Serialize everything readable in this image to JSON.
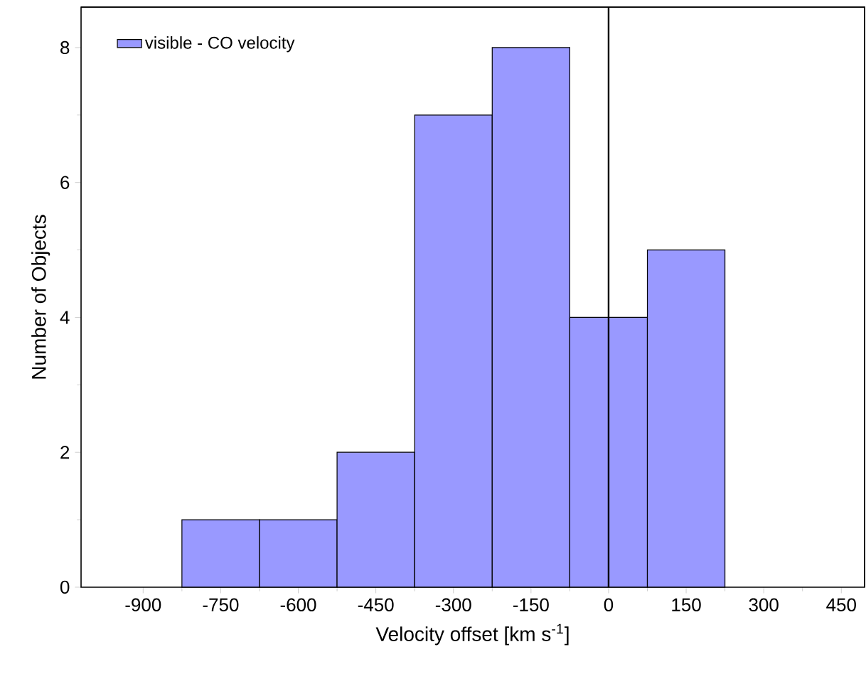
{
  "chart_data": {
    "type": "histogram",
    "xlabel": "Velocity offset [km s$^{-1}$]",
    "ylabel": "Number of Objects",
    "bins": [
      -825,
      -675,
      -525,
      -375,
      -225,
      -75,
      75,
      225
    ],
    "series": [
      {
        "name": "visible - CO velocity",
        "color": "#9999ff",
        "values": [
          1,
          1,
          2,
          7,
          8,
          4,
          5
        ]
      }
    ],
    "xlim": [
      -1020,
      495
    ],
    "ylim": [
      0,
      8.6
    ],
    "xticks": [
      -900,
      -750,
      -600,
      -450,
      -300,
      -150,
      0,
      150,
      300,
      450
    ],
    "yticks": [
      0,
      2,
      4,
      6,
      8
    ],
    "ref_lines": [
      {
        "axis": "x",
        "value": 0,
        "color": "#000000"
      }
    ],
    "legend": "top left"
  }
}
